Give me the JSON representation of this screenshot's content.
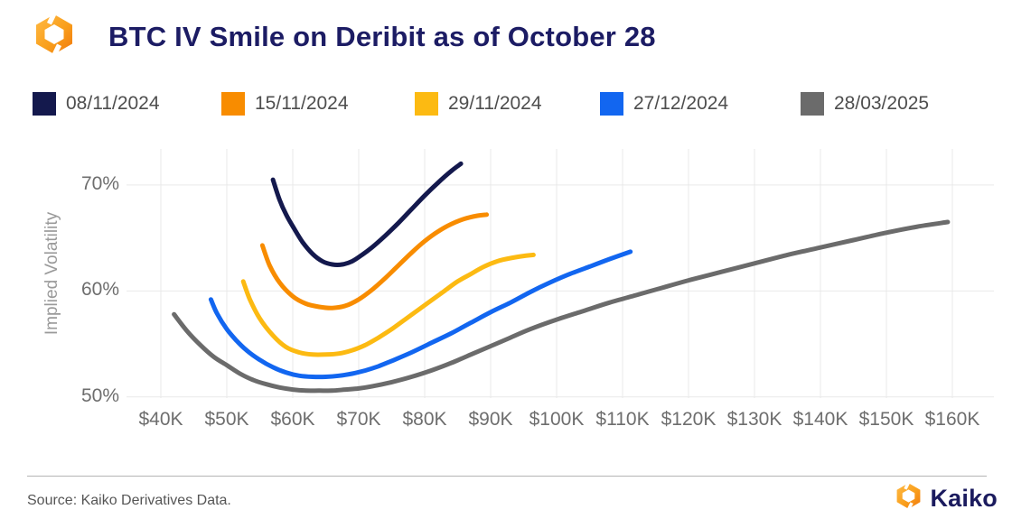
{
  "header": {
    "title": "BTC IV Smile on Deribit as of October 28"
  },
  "footer": {
    "source": "Source: Kaiko Derivatives Data.",
    "brand": "Kaiko"
  },
  "chart_data": {
    "type": "line",
    "title": "BTC IV Smile on Deribit as of October 28",
    "xlabel": "",
    "ylabel": "Implied Volatility",
    "x_unit": "strike price, USD thousands",
    "y_unit": "percent",
    "xlim": [
      34.8,
      166.3
    ],
    "ylim": [
      49.9,
      73.4
    ],
    "grid": true,
    "legend_position": "top",
    "x_ticks": {
      "values": [
        40,
        50,
        60,
        70,
        80,
        90,
        100,
        110,
        120,
        130,
        140,
        150,
        160
      ],
      "labels": [
        "$40K",
        "$50K",
        "$60K",
        "$70K",
        "$80K",
        "$90K",
        "$100K",
        "$110K",
        "$120K",
        "$130K",
        "$140K",
        "$150K",
        "$160K"
      ]
    },
    "y_ticks": {
      "values": [
        50,
        60,
        70
      ],
      "labels": [
        "50%",
        "60%",
        "70%"
      ]
    },
    "series": [
      {
        "name": "08/11/2024",
        "color": "#14194d",
        "points": [
          [
            57,
            70.5
          ],
          [
            58,
            68.6
          ],
          [
            59,
            67.2
          ],
          [
            60,
            66.1
          ],
          [
            61.5,
            64.6
          ],
          [
            63,
            63.5
          ],
          [
            64.5,
            62.8
          ],
          [
            66,
            62.5
          ],
          [
            67.5,
            62.5
          ],
          [
            69,
            62.8
          ],
          [
            70.5,
            63.4
          ],
          [
            72,
            64.1
          ],
          [
            74,
            65.2
          ],
          [
            76,
            66.4
          ],
          [
            78,
            67.7
          ],
          [
            80,
            69.0
          ],
          [
            82,
            70.2
          ],
          [
            84,
            71.3
          ],
          [
            85.5,
            72.0
          ]
        ]
      },
      {
        "name": "15/11/2024",
        "color": "#f88c00",
        "points": [
          [
            55.4,
            64.3
          ],
          [
            56.5,
            62.4
          ],
          [
            58,
            60.8
          ],
          [
            60,
            59.5
          ],
          [
            62,
            58.8
          ],
          [
            64,
            58.5
          ],
          [
            66,
            58.4
          ],
          [
            68,
            58.6
          ],
          [
            70,
            59.2
          ],
          [
            72,
            60.1
          ],
          [
            74,
            61.2
          ],
          [
            76,
            62.4
          ],
          [
            78,
            63.6
          ],
          [
            80,
            64.7
          ],
          [
            82,
            65.6
          ],
          [
            84,
            66.3
          ],
          [
            86,
            66.8
          ],
          [
            88,
            67.1
          ],
          [
            89.4,
            67.2
          ]
        ]
      },
      {
        "name": "29/11/2024",
        "color": "#fcba12",
        "points": [
          [
            52.5,
            60.9
          ],
          [
            53.5,
            59.2
          ],
          [
            55,
            57.4
          ],
          [
            57,
            55.8
          ],
          [
            59,
            54.7
          ],
          [
            61,
            54.2
          ],
          [
            63,
            54.0
          ],
          [
            65,
            54.0
          ],
          [
            67,
            54.1
          ],
          [
            69,
            54.4
          ],
          [
            71,
            54.9
          ],
          [
            73,
            55.6
          ],
          [
            75,
            56.4
          ],
          [
            77,
            57.3
          ],
          [
            79,
            58.2
          ],
          [
            81,
            59.1
          ],
          [
            83,
            60.0
          ],
          [
            85,
            60.9
          ],
          [
            87,
            61.6
          ],
          [
            89,
            62.3
          ],
          [
            91,
            62.8
          ],
          [
            93,
            63.1
          ],
          [
            95,
            63.3
          ],
          [
            96.5,
            63.4
          ]
        ]
      },
      {
        "name": "27/12/2024",
        "color": "#1266f0",
        "points": [
          [
            47.6,
            59.2
          ],
          [
            48.5,
            57.9
          ],
          [
            50,
            56.4
          ],
          [
            51.5,
            55.3
          ],
          [
            53,
            54.4
          ],
          [
            55,
            53.5
          ],
          [
            57,
            52.8
          ],
          [
            59,
            52.3
          ],
          [
            61,
            52.0
          ],
          [
            63,
            51.9
          ],
          [
            65,
            51.9
          ],
          [
            67,
            52.0
          ],
          [
            69,
            52.2
          ],
          [
            71,
            52.5
          ],
          [
            73,
            52.9
          ],
          [
            75,
            53.4
          ],
          [
            78,
            54.2
          ],
          [
            81,
            55.1
          ],
          [
            84,
            56.0
          ],
          [
            87,
            57.0
          ],
          [
            90,
            58.0
          ],
          [
            93,
            58.9
          ],
          [
            96,
            59.9
          ],
          [
            99,
            60.8
          ],
          [
            102,
            61.6
          ],
          [
            105,
            62.3
          ],
          [
            108,
            63.0
          ],
          [
            111.2,
            63.7
          ]
        ]
      },
      {
        "name": "28/03/2025",
        "color": "#6b6b6b",
        "points": [
          [
            42,
            57.8
          ],
          [
            44,
            56.2
          ],
          [
            46,
            54.9
          ],
          [
            48,
            53.8
          ],
          [
            50,
            53.0
          ],
          [
            52,
            52.2
          ],
          [
            54,
            51.6
          ],
          [
            56,
            51.2
          ],
          [
            58,
            50.9
          ],
          [
            60,
            50.7
          ],
          [
            62,
            50.6
          ],
          [
            64,
            50.6
          ],
          [
            66,
            50.6
          ],
          [
            68,
            50.7
          ],
          [
            70,
            50.8
          ],
          [
            72,
            51.0
          ],
          [
            75,
            51.4
          ],
          [
            78,
            51.9
          ],
          [
            81,
            52.5
          ],
          [
            84,
            53.2
          ],
          [
            87,
            54.0
          ],
          [
            90,
            54.8
          ],
          [
            93,
            55.6
          ],
          [
            96,
            56.4
          ],
          [
            100,
            57.3
          ],
          [
            104,
            58.1
          ],
          [
            108,
            58.9
          ],
          [
            112,
            59.6
          ],
          [
            116,
            60.3
          ],
          [
            120,
            61.0
          ],
          [
            125,
            61.8
          ],
          [
            130,
            62.6
          ],
          [
            135,
            63.4
          ],
          [
            140,
            64.1
          ],
          [
            145,
            64.8
          ],
          [
            150,
            65.5
          ],
          [
            155,
            66.1
          ],
          [
            159.3,
            66.5
          ]
        ]
      }
    ]
  }
}
